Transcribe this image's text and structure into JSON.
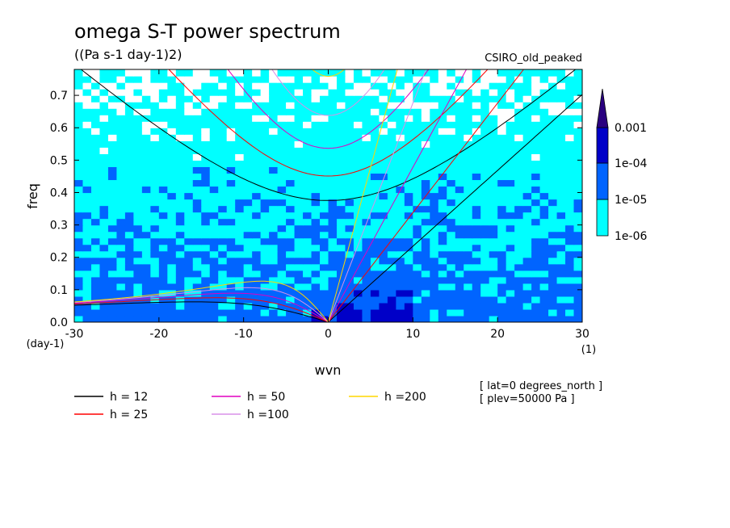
{
  "chart_data": {
    "type": "heatmap",
    "title": "omega S-T power spectrum",
    "units": "((Pa s-1 day-1)2)",
    "model": "CSIRO_old_peaked",
    "xlabel": "wvn",
    "ylabel": "freq",
    "x_unit_label": "(1)",
    "y_unit_label": "(day-1)",
    "xlim": [
      -30,
      30
    ],
    "ylim": [
      0,
      0.78
    ],
    "x_ticks": [
      -30,
      -20,
      -10,
      0,
      10,
      20,
      30
    ],
    "y_ticks": [
      0.0,
      0.1,
      0.2,
      0.3,
      0.4,
      0.5,
      0.6,
      0.7
    ],
    "x_tick_labels": [
      "-30",
      "-20",
      "-10",
      "0",
      "10",
      "20",
      "30"
    ],
    "y_tick_labels": [
      "0.0",
      "0.1",
      "0.2",
      "0.3",
      "0.4",
      "0.5",
      "0.6",
      "0.7"
    ],
    "colorbar": {
      "levels": [
        "1e-06",
        "1e-05",
        "1e-04",
        "0.001"
      ],
      "colors": [
        "#00ffff",
        "#0064ff",
        "#0000c8",
        "#2a0080"
      ]
    },
    "dispersion_curves": [
      {
        "name": "h = 12",
        "h": 12,
        "color": "#000000"
      },
      {
        "name": "h = 25",
        "h": 25,
        "color": "#ff0000"
      },
      {
        "name": "h = 50",
        "h": 50,
        "color": "#e000c0"
      },
      {
        "name": "h =100",
        "h": 100,
        "color": "#d890e8"
      },
      {
        "name": "h =200",
        "h": 200,
        "color": "#ffd700"
      }
    ],
    "annotations": [
      "[ lat=0 degrees_north ]",
      "[ plev=50000 Pa ]"
    ]
  }
}
